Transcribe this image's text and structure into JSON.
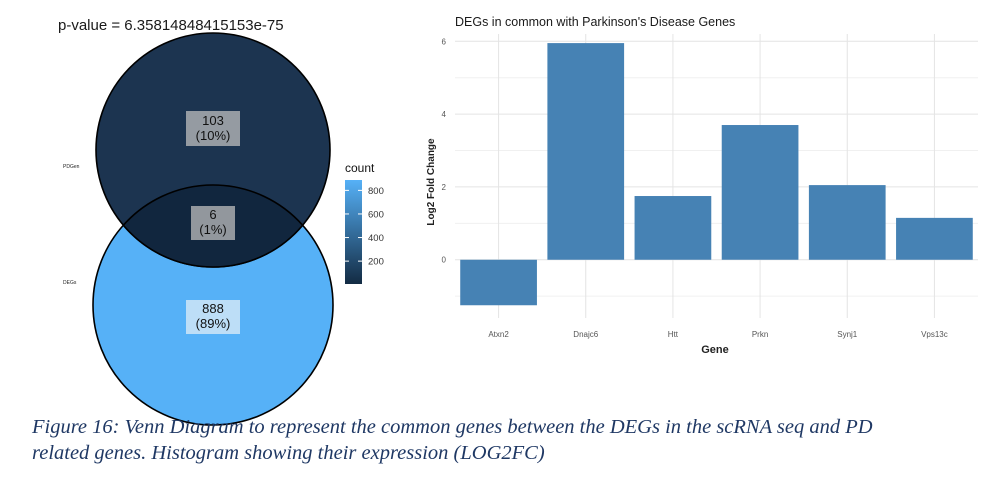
{
  "venn": {
    "pvalue_label": "p-value = 6.35814848415153e-75",
    "sets": [
      {
        "label": "PDGen",
        "color": "#152d4a"
      },
      {
        "label": "DEGs",
        "color": "#56b1f7"
      }
    ],
    "regions": [
      {
        "count": "103",
        "pct": "(10%)"
      },
      {
        "count": "6",
        "pct": "(1%)"
      },
      {
        "count": "888",
        "pct": "(89%)"
      }
    ],
    "legend": {
      "title": "count",
      "ticks": [
        "800",
        "600",
        "400",
        "200"
      ],
      "tick_values": [
        800,
        600,
        400,
        200
      ],
      "range": [
        6,
        888
      ],
      "low_color": "#132b43",
      "high_color": "#56b1f7"
    }
  },
  "chart_data": {
    "type": "bar",
    "title": "DEGs in common with Parkinson's Disease Genes",
    "xlabel": "Gene",
    "ylabel": "Log2 Fold Change",
    "categories": [
      "Atxn2",
      "Dnajc6",
      "Htt",
      "Prkn",
      "Synj1",
      "Vps13c"
    ],
    "values": [
      -1.25,
      5.95,
      1.75,
      3.7,
      2.05,
      1.15
    ],
    "yticks": [
      0,
      2,
      4,
      6
    ],
    "ylim": [
      -1.6,
      6.2
    ],
    "grid": true,
    "bar_color": "#4682b4"
  },
  "caption": {
    "line1": "Figure 16: Venn Diagram to represent the common genes between the DEGs in the scRNA seq and PD",
    "line2": "related genes. Histogram showing their expression (LOG2FC)"
  }
}
